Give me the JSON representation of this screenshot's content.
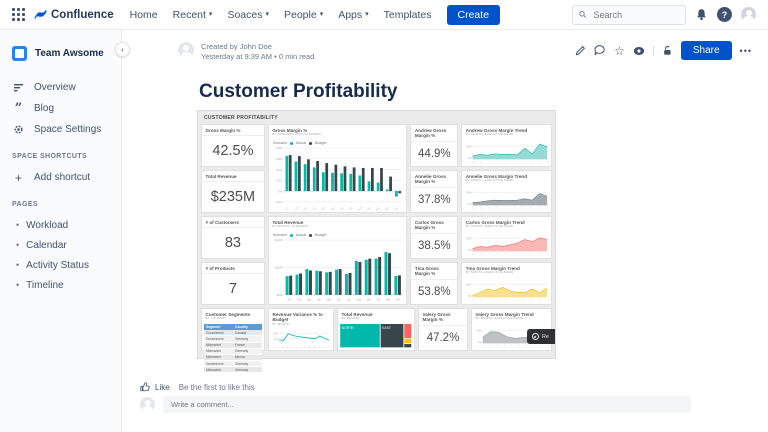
{
  "topbar": {
    "app_name": "Confluence",
    "menu": [
      "Home",
      "Recent",
      "Soaces",
      "People",
      "Apps",
      "Templates"
    ],
    "create_label": "Create",
    "search_placeholder": "Search"
  },
  "icons": {
    "chevron_down": "▾",
    "star": "☆",
    "dots": "•••",
    "plus": "+",
    "bullet": "•",
    "collapse": "‹",
    "quote": "”",
    "help": "?"
  },
  "sidebar": {
    "space_name": "Team Awsome",
    "items": [
      {
        "label": "Overview"
      },
      {
        "label": "Blog"
      },
      {
        "label": "Space Settings"
      }
    ],
    "shortcuts_label": "SPACE SHORTCUTS",
    "add_shortcut_label": "Add shortcut",
    "pages_label": "PAGES",
    "pages": [
      "Workload",
      "Calendar",
      "Activity Status",
      "Timeline"
    ]
  },
  "page": {
    "byline_created": "Created by John Doe",
    "byline_meta": "Yesterday at 9:39 AM  •  0 min read",
    "title": "Customer Profitability",
    "share_label": "Share",
    "like_label": "Like",
    "like_hint": "Be the first to like this",
    "comment_placeholder": "Write a comment..."
  },
  "dashboard": {
    "header": "CUSTOMER PROFITABILITY",
    "overlay_label": "Re",
    "kpi_left": [
      {
        "title": "Gross Margin %",
        "value": "42.5%"
      },
      {
        "title": "Total Revenue",
        "value": "$235M"
      },
      {
        "title": "# of Customers",
        "value": "83"
      },
      {
        "title": "# of Products",
        "value": "7"
      }
    ],
    "kpi_exec": [
      {
        "title": "Andrew Gross Margin %",
        "value": "44.9%"
      },
      {
        "title": "Annelie Gross Margin %",
        "value": "37.8%"
      },
      {
        "title": "Carlos Gross Margin %",
        "value": "38.5%"
      },
      {
        "title": "Tina Gross Margin %",
        "value": "53.8%"
      }
    ],
    "kpi_valery": {
      "title": "Valery Gross Margin %",
      "value": "47.2%"
    }
  },
  "chart_data": {
    "gm_by_bu": {
      "type": "grouped-bar",
      "title": "Gross Margin %",
      "subtitle": "BY BUSINESS UNIT, SCENARIO",
      "legend": {
        "label": "Scenario",
        "items": [
          {
            "label": "Actual",
            "color": "#01B8AA"
          },
          {
            "label": "Budget",
            "color": "#374649"
          }
        ]
      },
      "categories": [
        "PL-0",
        "LG-0",
        "ST-0",
        "RG-0",
        "CR-0",
        "GW-0",
        "MQ-0",
        "MD-0",
        "PL-3",
        "SE-0",
        "CB-0",
        "DM-0",
        "WA-0"
      ],
      "series": [
        {
          "name": "Actual",
          "color": "#01B8AA",
          "values": [
            65,
            55,
            50,
            44,
            35,
            34,
            33,
            32,
            29,
            18,
            16,
            3,
            -10
          ]
        },
        {
          "name": "Budget",
          "color": "#374649",
          "values": [
            67,
            65,
            59,
            56,
            52,
            49,
            46,
            44,
            43,
            43,
            43,
            27,
            -4
          ]
        }
      ],
      "ylim": [
        -20,
        80
      ],
      "yticks": [
        {
          "v": 80,
          "label": "80%"
        },
        {
          "v": 60,
          "label": "60%"
        },
        {
          "v": 40,
          "label": "40%"
        },
        {
          "v": 20,
          "label": "20%"
        },
        {
          "v": 0,
          "label": "0%"
        },
        {
          "v": -20,
          "label": "-20%"
        }
      ],
      "rotate_x": true,
      "xsize": 2.4,
      "ml": 13
    },
    "rev_by_month": {
      "type": "grouped-bar",
      "title": "Total Revenue",
      "subtitle": "BY MONTH, SCENARIO",
      "legend": {
        "label": "Scenario",
        "items": [
          {
            "label": "Actual",
            "color": "#01B8AA"
          },
          {
            "label": "Budget",
            "color": "#374649"
          }
        ]
      },
      "categories": [
        "Jan",
        "Feb",
        "Mar",
        "Apr",
        "May",
        "Jun",
        "Jul",
        "Aug",
        "Sep",
        "Oct",
        "Nov",
        "Dec"
      ],
      "series": [
        {
          "name": "Actual",
          "color": "#01B8AA",
          "values": [
            6.8,
            7.4,
            9.4,
            8.8,
            8.2,
            9.2,
            7.6,
            12.4,
            12.8,
            13.2,
            15.6,
            6.9
          ]
        },
        {
          "name": "Budget",
          "color": "#374649",
          "values": [
            7.0,
            7.8,
            8.9,
            8.6,
            8.4,
            9.4,
            8.0,
            12.0,
            13.2,
            13.8,
            15.2,
            7.1
          ]
        }
      ],
      "ylim": [
        0,
        20
      ],
      "yticks": [
        {
          "v": 20,
          "label": "$20M"
        },
        {
          "v": 10,
          "label": "$10M"
        },
        {
          "v": 0,
          "label": "$0M"
        }
      ],
      "rotate_x": false,
      "xsize": 2.6,
      "ml": 13
    },
    "rev_variance": {
      "type": "line",
      "title": "Revenue Variance % to Budget",
      "subtitle": "BY MONTH",
      "color": "#01B8AA",
      "categories": [
        "Jan",
        "Feb",
        "Mar",
        "Apr",
        "May",
        "Jun",
        "Jul",
        "Aug",
        "Sep",
        "Oct",
        "Nov",
        "Dec"
      ],
      "values": [
        -2,
        -3,
        9,
        6,
        4,
        3,
        2,
        1,
        0.5,
        5,
        1,
        -3
      ],
      "ylim": [
        -6,
        12
      ],
      "yticks": [
        {
          "v": 10,
          "label": "10%"
        },
        {
          "v": 0,
          "label": "0%"
        }
      ],
      "rotate_x": true,
      "xsize": 2,
      "ml": 8
    },
    "rev_treemap": {
      "type": "treemap",
      "title": "Total Revenue",
      "subtitle": "BY REGION",
      "blocks": [
        {
          "label": "NORTH",
          "color": "#01B8AA",
          "x": 0,
          "y": 0,
          "w": 0.56,
          "h": 1
        },
        {
          "label": "EAST",
          "color": "#374649",
          "x": 0.565,
          "y": 0,
          "w": 0.325,
          "h": 1
        },
        {
          "label": "",
          "color": "#FD625E",
          "x": 0.895,
          "y": 0,
          "w": 0.105,
          "h": 0.62
        },
        {
          "label": "",
          "color": "#F2C80F",
          "x": 0.895,
          "y": 0.63,
          "w": 0.105,
          "h": 0.2
        },
        {
          "label": "",
          "color": "#374649",
          "x": 0.895,
          "y": 0.84,
          "w": 0.105,
          "h": 0.16
        }
      ]
    },
    "segments": {
      "type": "table",
      "title": "Customer Segments",
      "subtitle": "BY COUNTRY",
      "headers": [
        "Segment",
        "Country"
      ],
      "rows": [
        [
          "Government",
          "Canada"
        ],
        [
          "Government",
          "Germany"
        ],
        [
          "Midmarket",
          "France"
        ],
        [
          "Midmarket",
          "Germany"
        ],
        [
          "Midmarket",
          "Mexico"
        ],
        [
          "Government",
          "Germany"
        ],
        [
          "Midmarket",
          "Germany"
        ]
      ]
    },
    "andrew_trend": {
      "type": "area",
      "title": "Andrew Gross Margin Trend",
      "subtitle": "BY MONTH, EXECUTIVE NAME",
      "color": "#31B6AB",
      "fill": "#8FD8D2",
      "values": [
        1,
        1.4,
        1.2,
        1.6,
        1.4,
        1.5,
        1.3,
        3.2,
        1.6,
        4.4,
        3.6
      ],
      "ylim": [
        0,
        5
      ],
      "yticks": [
        {
          "v": 3.8,
          "label": "50%"
        },
        {
          "v": 0.5,
          "label": "0%"
        }
      ]
    },
    "annelie_trend": {
      "type": "area",
      "title": "Annelie Gross Margin Trend",
      "subtitle": "BY MONTH, EXECUTIVE NAME",
      "color": "#7A8487",
      "fill": "#9FA8AB",
      "values": [
        0.8,
        1,
        1.3,
        1.5,
        1.4,
        1.4,
        1.5,
        1.9,
        1.5,
        3.4,
        2.6
      ],
      "ylim": [
        0,
        5
      ],
      "yticks": [
        {
          "v": 3.8,
          "label": "50%"
        },
        {
          "v": 0.5,
          "label": "0%"
        }
      ]
    },
    "carlos_trend": {
      "type": "area",
      "title": "Carlos Gross Margin Trend",
      "subtitle": "BY MONTH, EXECUTIVE NAME",
      "color": "#F2726F",
      "fill": "#F8B4B2",
      "values": [
        0.8,
        1.4,
        1.2,
        1.7,
        1.4,
        1.9,
        2.4,
        3.4,
        2.8,
        3.9,
        3.4
      ],
      "ylim": [
        0,
        5
      ],
      "yticks": [
        {
          "v": 3.8,
          "label": "50%"
        },
        {
          "v": 0.5,
          "label": "0%"
        }
      ]
    },
    "tina_trend": {
      "type": "area",
      "title": "Tina Gross Margin Trend",
      "subtitle": "BY MONTH, EXECUTIVE NAME",
      "color": "#E8C227",
      "fill": "#F6DF88",
      "values": [
        0.5,
        1.4,
        2.4,
        1.9,
        2.9,
        1.9,
        1.4,
        1.4,
        2.4,
        1.4,
        2.7
      ],
      "ylim": [
        0,
        5
      ],
      "yticks": [
        {
          "v": 3.8,
          "label": "50%"
        },
        {
          "v": 0.5,
          "label": "0%"
        }
      ]
    },
    "valery_trend": {
      "type": "area",
      "title": "Valery Gross Margin Trend",
      "subtitle": "BY MONTH, EXECUTIVE NAME",
      "color": "#98A2A5",
      "fill": "#B9C0C2",
      "values": [
        1.8,
        3.4,
        3.2,
        1.9,
        1.4,
        1.7,
        1.7,
        1.4,
        1.6
      ],
      "ylim": [
        0,
        5
      ],
      "yticks": [
        {
          "v": 3.8,
          "label": "50%"
        },
        {
          "v": 0.5,
          "label": "0%"
        }
      ]
    }
  }
}
